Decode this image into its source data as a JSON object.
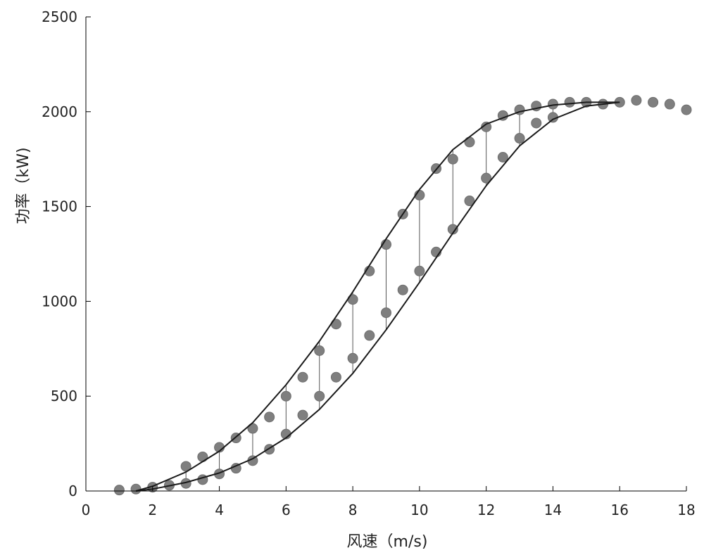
{
  "chart_data": {
    "type": "scatter",
    "title": "",
    "xlabel": "风速（m/s)",
    "ylabel": "功率（kW)",
    "xlim": [
      0,
      18
    ],
    "ylim": [
      0,
      2500
    ],
    "xticks": [
      0,
      2,
      4,
      6,
      8,
      10,
      12,
      14,
      16,
      18
    ],
    "yticks": [
      0,
      500,
      1000,
      1500,
      2000,
      2500
    ],
    "grid": false,
    "legend": "none",
    "colors": {
      "scatter": "#7f7f7f",
      "band_line": "#1a1a1a",
      "hatch": "#555555",
      "axis": "#000000"
    },
    "series": [
      {
        "kind": "scatter",
        "x": [
          1.0,
          1.5,
          2.0,
          2.5,
          3.0,
          3.0,
          3.5,
          3.5,
          4.0,
          4.0,
          4.5,
          4.5,
          5.0,
          5.0,
          5.5,
          5.5,
          6.0,
          6.0,
          6.5,
          6.5,
          7.0,
          7.0,
          7.5,
          7.5,
          8.0,
          8.0,
          8.5,
          8.5,
          9.0,
          9.0,
          9.5,
          9.5,
          10.0,
          10.0,
          10.5,
          10.5,
          11.0,
          11.0,
          11.5,
          11.5,
          12.0,
          12.0,
          12.5,
          12.5,
          13.0,
          13.0,
          13.5,
          13.5,
          14.0,
          14.0,
          14.5,
          15.0,
          15.5,
          16.0,
          16.5,
          17.0,
          17.5,
          18.0
        ],
        "y": [
          5,
          10,
          20,
          30,
          130,
          40,
          180,
          60,
          230,
          90,
          280,
          120,
          330,
          160,
          390,
          220,
          500,
          300,
          600,
          400,
          740,
          500,
          880,
          600,
          1010,
          700,
          1160,
          820,
          1300,
          940,
          1460,
          1060,
          1560,
          1160,
          1700,
          1260,
          1750,
          1380,
          1840,
          1530,
          1920,
          1650,
          1980,
          1760,
          2010,
          1860,
          2030,
          1940,
          2040,
          1970,
          2050,
          2050,
          2040,
          2050,
          2060,
          2050,
          2040,
          2010
        ]
      },
      {
        "kind": "upper_bound",
        "x": [
          1.5,
          2,
          3,
          4,
          5,
          6,
          7,
          8,
          9,
          10,
          11,
          12,
          13,
          14,
          15,
          16
        ],
        "y": [
          0,
          25,
          100,
          210,
          360,
          560,
          790,
          1050,
          1330,
          1590,
          1800,
          1935,
          2000,
          2035,
          2050,
          2050
        ]
      },
      {
        "kind": "lower_bound",
        "x": [
          1.5,
          2,
          3,
          4,
          5,
          6,
          7,
          8,
          9,
          10,
          11,
          12,
          13,
          14,
          15,
          16
        ],
        "y": [
          0,
          10,
          45,
          95,
          170,
          280,
          430,
          620,
          850,
          1100,
          1360,
          1610,
          1820,
          1960,
          2030,
          2050
        ]
      }
    ]
  }
}
